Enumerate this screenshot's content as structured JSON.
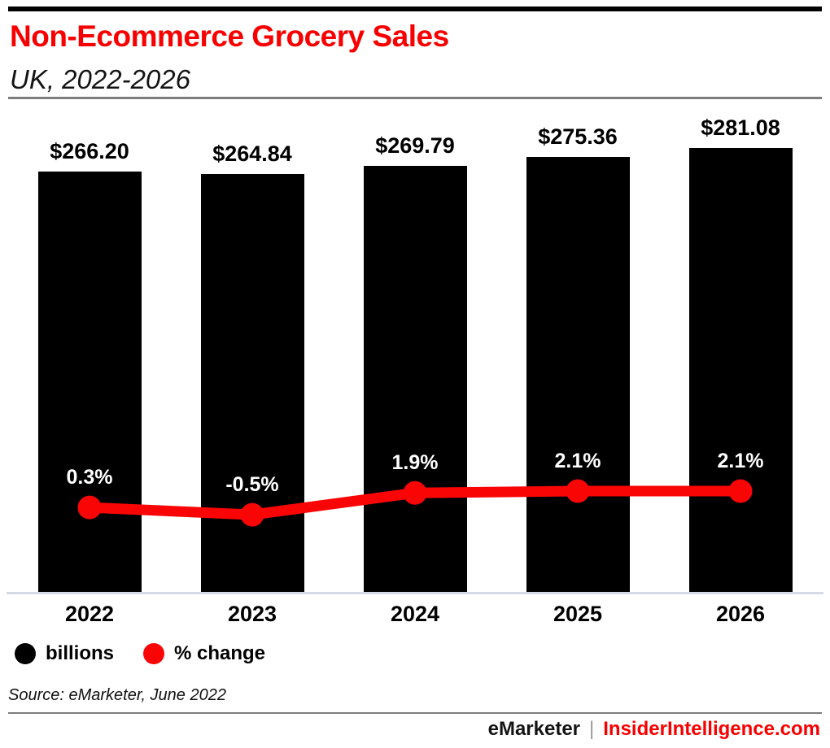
{
  "chart_data": {
    "type": "bar+line",
    "title": "Non-Ecommerce Grocery Sales",
    "subtitle": "UK, 2022-2026",
    "categories": [
      "2022",
      "2023",
      "2024",
      "2025",
      "2026"
    ],
    "series": [
      {
        "name": "billions",
        "type": "bar",
        "values": [
          266.2,
          264.84,
          269.79,
          275.36,
          281.08
        ],
        "labels": [
          "$266.20",
          "$264.84",
          "$269.79",
          "$275.36",
          "$281.08"
        ],
        "color": "#000000",
        "ylim": [
          0,
          290
        ]
      },
      {
        "name": "% change",
        "type": "line",
        "values": [
          0.3,
          -0.5,
          1.9,
          2.1,
          2.1
        ],
        "labels": [
          "0.3%",
          "-0.5%",
          "1.9%",
          "2.1%",
          "2.1%"
        ],
        "color": "#fa0505"
      }
    ],
    "xlabel": "",
    "ylabel": "",
    "grid": false,
    "legend_position": "bottom",
    "value_label_position": "above-bar",
    "pct_label_position": "above-line-point"
  },
  "source": "Source: eMarketer, June 2022",
  "footer": {
    "brand": "eMarketer",
    "separator": "|",
    "site": "InsiderIntelligence.com"
  },
  "colors": {
    "accent_red": "#f80000",
    "bar_black": "#000000",
    "pct_label_white": "#ffffff",
    "axis_line": "#d4dbe6",
    "rule_gray": "#7d7d7d"
  }
}
